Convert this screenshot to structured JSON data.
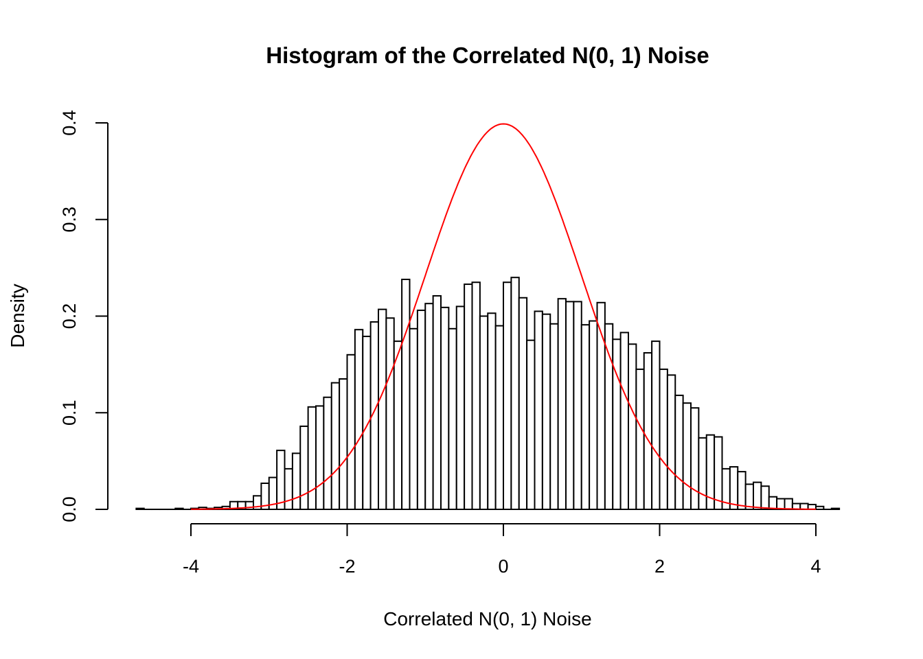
{
  "chart_data": {
    "type": "bar",
    "subtype": "histogram",
    "title": "Histogram of the Correlated N(0, 1) Noise",
    "xlabel": "Correlated N(0, 1) Noise",
    "ylabel": "Density",
    "xlim": [
      -4.7,
      4.3
    ],
    "ylim": [
      0,
      0.4
    ],
    "x_ticks": [
      "-4",
      "-2",
      "0",
      "2",
      "4"
    ],
    "y_ticks": [
      "0.0",
      "0.1",
      "0.2",
      "0.3",
      "0.4"
    ],
    "bin_start": -4.7,
    "bin_width": 0.1,
    "densities": [
      0.001,
      0,
      0,
      0,
      0,
      0.001,
      0,
      0.001,
      0.002,
      0.001,
      0.002,
      0.003,
      0.008,
      0.008,
      0.008,
      0.014,
      0.027,
      0.033,
      0.061,
      0.042,
      0.058,
      0.086,
      0.106,
      0.107,
      0.116,
      0.131,
      0.135,
      0.16,
      0.186,
      0.179,
      0.194,
      0.207,
      0.198,
      0.174,
      0.238,
      0.187,
      0.206,
      0.213,
      0.221,
      0.209,
      0.187,
      0.21,
      0.233,
      0.235,
      0.2,
      0.203,
      0.19,
      0.235,
      0.24,
      0.219,
      0.175,
      0.205,
      0.202,
      0.192,
      0.218,
      0.215,
      0.215,
      0.191,
      0.195,
      0.214,
      0.192,
      0.176,
      0.183,
      0.171,
      0.145,
      0.162,
      0.174,
      0.145,
      0.139,
      0.118,
      0.11,
      0.105,
      0.074,
      0.077,
      0.075,
      0.042,
      0.044,
      0.039,
      0.026,
      0.028,
      0.024,
      0.013,
      0.011,
      0.011,
      0.006,
      0.006,
      0.005,
      0.003,
      0,
      0.001
    ],
    "overlay": {
      "type": "line",
      "function": "standard normal density",
      "x_range": [
        -4,
        4
      ],
      "color": "#ff0000"
    },
    "bar_fill": "#ffffff",
    "bar_stroke": "#000000",
    "grid": false
  }
}
